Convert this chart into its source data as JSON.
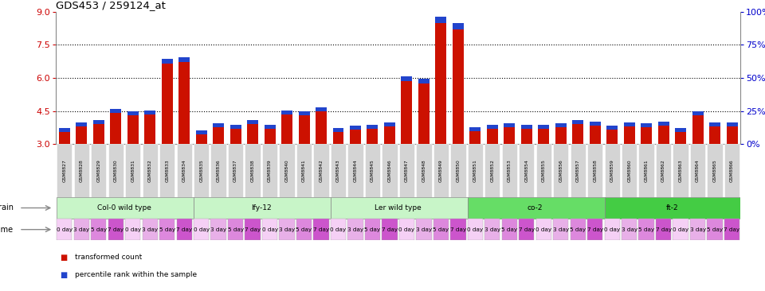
{
  "title": "GDS453 / 259124_at",
  "samples": [
    "GSM8827",
    "GSM8828",
    "GSM8829",
    "GSM8830",
    "GSM8831",
    "GSM8832",
    "GSM8833",
    "GSM8834",
    "GSM8835",
    "GSM8836",
    "GSM8837",
    "GSM8838",
    "GSM8839",
    "GSM8840",
    "GSM8841",
    "GSM8842",
    "GSM8843",
    "GSM8844",
    "GSM8845",
    "GSM8846",
    "GSM8847",
    "GSM8848",
    "GSM8849",
    "GSM8850",
    "GSM8851",
    "GSM8852",
    "GSM8853",
    "GSM8854",
    "GSM8855",
    "GSM8856",
    "GSM8857",
    "GSM8858",
    "GSM8859",
    "GSM8860",
    "GSM8861",
    "GSM8862",
    "GSM8863",
    "GSM8864",
    "GSM8865",
    "GSM8866"
  ],
  "red_values": [
    3.55,
    3.8,
    3.9,
    4.4,
    4.3,
    4.35,
    6.65,
    6.7,
    3.45,
    3.75,
    3.7,
    3.9,
    3.7,
    4.35,
    4.3,
    4.5,
    3.55,
    3.65,
    3.7,
    3.8,
    5.85,
    5.75,
    8.5,
    8.2,
    3.6,
    3.7,
    3.75,
    3.7,
    3.7,
    3.75,
    3.9,
    3.85,
    3.65,
    3.8,
    3.75,
    3.85,
    3.55,
    4.3,
    3.8,
    3.8
  ],
  "blue_values": [
    0.18,
    0.18,
    0.18,
    0.18,
    0.18,
    0.18,
    0.22,
    0.22,
    0.18,
    0.18,
    0.18,
    0.18,
    0.18,
    0.18,
    0.18,
    0.18,
    0.18,
    0.18,
    0.18,
    0.18,
    0.22,
    0.22,
    0.28,
    0.28,
    0.18,
    0.18,
    0.18,
    0.18,
    0.18,
    0.18,
    0.18,
    0.18,
    0.18,
    0.18,
    0.18,
    0.18,
    0.18,
    0.18,
    0.18,
    0.18
  ],
  "ymin": 3.0,
  "ymax": 9.0,
  "yticks_left": [
    3.0,
    4.5,
    6.0,
    7.5,
    9.0
  ],
  "yticks_right_labels": [
    "0%",
    "25%",
    "50%",
    "75%",
    "100%"
  ],
  "hlines": [
    4.5,
    6.0,
    7.5
  ],
  "strains": [
    {
      "label": "Col-0 wild type",
      "start": 0,
      "end": 8,
      "color": "#c8f5c8"
    },
    {
      "label": "lfy-12",
      "start": 8,
      "end": 16,
      "color": "#c8f5c8"
    },
    {
      "label": "Ler wild type",
      "start": 16,
      "end": 24,
      "color": "#c8f5c8"
    },
    {
      "label": "co-2",
      "start": 24,
      "end": 32,
      "color": "#66dd66"
    },
    {
      "label": "ft-2",
      "start": 32,
      "end": 40,
      "color": "#44cc44"
    }
  ],
  "time_pattern": [
    "0 day",
    "3 day",
    "5 day",
    "7 day"
  ],
  "time_colors": {
    "0 day": "#f5d0f5",
    "3 day": "#e8b0e8",
    "5 day": "#dd88dd",
    "7 day": "#cc55cc"
  },
  "bar_color_red": "#cc1100",
  "bar_color_blue": "#2244cc",
  "bar_width": 0.65,
  "bg_color": "#ffffff",
  "label_color_left": "#cc0000",
  "label_color_right": "#0000cc"
}
